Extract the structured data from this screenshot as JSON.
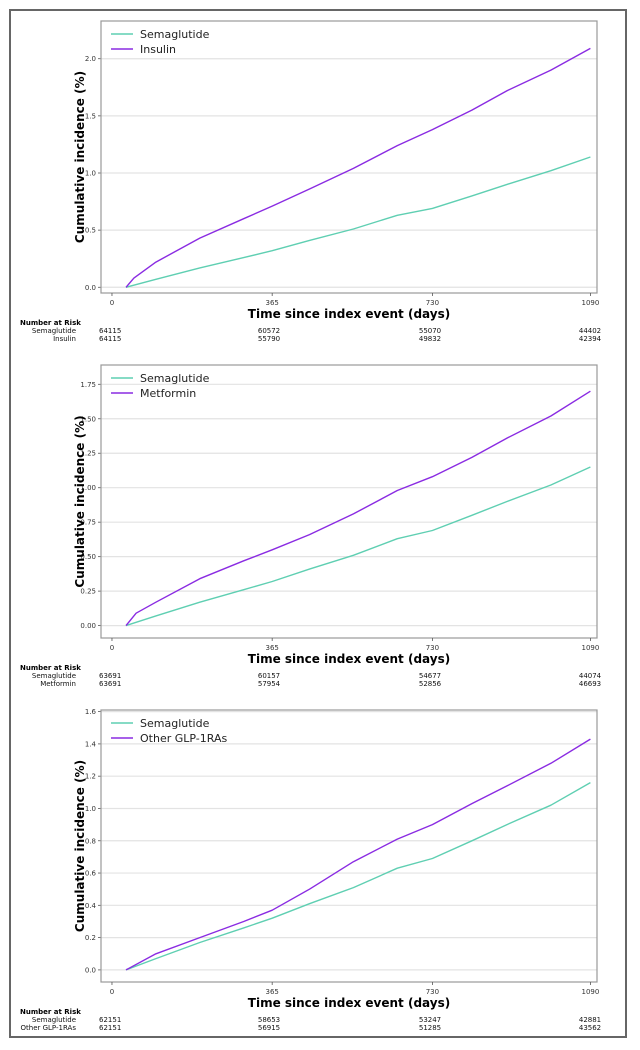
{
  "colors": {
    "semaglutide": "#5fcfb2",
    "comparator": "#8a2be2",
    "grid": "#e3e3e3",
    "axis": "#999999"
  },
  "chart_data": [
    {
      "type": "line",
      "xlabel": "Time since index event (days)",
      "ylabel": "Cumulative incidence (%)",
      "xticks": [
        0,
        365,
        730,
        1090
      ],
      "xlim": [
        -25,
        1105
      ],
      "yticks": [
        "0.0",
        "0.5",
        "1.0",
        "1.5",
        "2.0"
      ],
      "ylim": [
        -0.05,
        2.33
      ],
      "grid": true,
      "legend_position": "top-left",
      "series": [
        {
          "name": "Semaglutide",
          "color_key": "semaglutide",
          "x": [
            32,
            100,
            200,
            300,
            365,
            450,
            550,
            650,
            730,
            820,
            900,
            1000,
            1090
          ],
          "y": [
            0,
            0.07,
            0.17,
            0.26,
            0.32,
            0.41,
            0.51,
            0.63,
            0.69,
            0.8,
            0.9,
            1.02,
            1.14
          ]
        },
        {
          "name": "Insulin",
          "color_key": "comparator",
          "x": [
            32,
            50,
            100,
            200,
            300,
            365,
            450,
            550,
            650,
            730,
            820,
            900,
            1000,
            1090
          ],
          "y": [
            0,
            0.08,
            0.22,
            0.43,
            0.6,
            0.71,
            0.86,
            1.04,
            1.24,
            1.38,
            1.55,
            1.72,
            1.9,
            2.09
          ]
        }
      ],
      "risk_table": {
        "title": "Number at Risk",
        "rows": [
          {
            "label": "Semaglutide",
            "values": [
              "64115",
              "60572",
              "55070",
              "44402"
            ]
          },
          {
            "label": "Insulin",
            "values": [
              "64115",
              "55790",
              "49832",
              "42394"
            ]
          }
        ]
      }
    },
    {
      "type": "line",
      "xlabel": "Time since index event (days)",
      "ylabel": "Cumulative incidence (%)",
      "xticks": [
        0,
        365,
        730,
        1090
      ],
      "xlim": [
        -25,
        1105
      ],
      "yticks": [
        "0.00",
        "0.25",
        "0.50",
        "0.75",
        "1.00",
        "1.25",
        "1.50",
        "1.75"
      ],
      "ylim": [
        -0.09,
        1.89
      ],
      "grid": true,
      "legend_position": "top-left",
      "series": [
        {
          "name": "Semaglutide",
          "color_key": "semaglutide",
          "x": [
            32,
            100,
            200,
            300,
            365,
            450,
            550,
            650,
            730,
            820,
            900,
            1000,
            1090
          ],
          "y": [
            0,
            0.07,
            0.17,
            0.26,
            0.32,
            0.41,
            0.51,
            0.63,
            0.69,
            0.8,
            0.9,
            1.02,
            1.15
          ]
        },
        {
          "name": "Metformin",
          "color_key": "comparator",
          "x": [
            32,
            55,
            100,
            200,
            300,
            365,
            450,
            550,
            650,
            730,
            820,
            900,
            1000,
            1090
          ],
          "y": [
            0,
            0.09,
            0.17,
            0.34,
            0.47,
            0.55,
            0.66,
            0.81,
            0.98,
            1.08,
            1.22,
            1.36,
            1.52,
            1.7
          ]
        }
      ],
      "risk_table": {
        "title": "Number at Risk",
        "rows": [
          {
            "label": "Semaglutide",
            "values": [
              "63691",
              "60157",
              "54677",
              "44074"
            ]
          },
          {
            "label": "Metformin",
            "values": [
              "63691",
              "57954",
              "52856",
              "46693"
            ]
          }
        ]
      }
    },
    {
      "type": "line",
      "xlabel": "Time since index event (days)",
      "ylabel": "Cumulative incidence (%)",
      "xticks": [
        0,
        365,
        730,
        1090
      ],
      "xlim": [
        -25,
        1105
      ],
      "yticks": [
        "0.0",
        "0.2",
        "0.4",
        "0.6",
        "0.8",
        "1.0",
        "1.2",
        "1.4",
        "1.6"
      ],
      "ylim": [
        -0.075,
        1.61
      ],
      "grid": true,
      "legend_position": "top-left",
      "series": [
        {
          "name": "Semaglutide",
          "color_key": "semaglutide",
          "x": [
            32,
            100,
            200,
            300,
            365,
            450,
            550,
            650,
            730,
            820,
            900,
            1000,
            1090
          ],
          "y": [
            0,
            0.07,
            0.17,
            0.26,
            0.32,
            0.41,
            0.51,
            0.63,
            0.69,
            0.8,
            0.9,
            1.02,
            1.16
          ]
        },
        {
          "name": "Other GLP-1RAs",
          "color_key": "comparator",
          "x": [
            32,
            100,
            200,
            300,
            365,
            450,
            550,
            650,
            730,
            820,
            900,
            1000,
            1090
          ],
          "y": [
            0,
            0.1,
            0.2,
            0.3,
            0.37,
            0.5,
            0.67,
            0.81,
            0.9,
            1.03,
            1.14,
            1.28,
            1.43
          ]
        }
      ],
      "risk_table": {
        "title": "Number at Risk",
        "rows": [
          {
            "label": "Semaglutide",
            "values": [
              "62151",
              "58653",
              "53247",
              "42881"
            ]
          },
          {
            "label": "Other GLP-1RAs",
            "values": [
              "62151",
              "56915",
              "51285",
              "43562"
            ]
          }
        ]
      }
    }
  ]
}
